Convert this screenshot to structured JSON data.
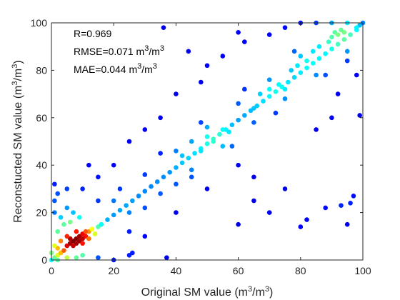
{
  "chart_data": {
    "type": "scatter",
    "title": "",
    "xlabel": {
      "base": "Original SM value (m",
      "sup1": "3",
      "mid": "/m",
      "sup2": "3",
      "end": ")"
    },
    "ylabel": {
      "base": "Reconstucted SM value (m",
      "sup1": "3",
      "mid": "/m",
      "sup2": "3",
      "end": ")"
    },
    "xlim": [
      0,
      100
    ],
    "ylim": [
      0,
      100
    ],
    "xticks": [
      0,
      20,
      40,
      60,
      80,
      100
    ],
    "yticks": [
      0,
      20,
      40,
      60,
      80,
      100
    ],
    "grid": false,
    "colormap": "jet (point density)",
    "annotations": [
      {
        "text": "R=0.969",
        "sup": "",
        "tail": ""
      },
      {
        "text": "RMSE=0.071 m",
        "sup": "3",
        "mid": "/m",
        "sup2": "3"
      },
      {
        "text": "MAE=0.044 m",
        "sup": "3",
        "mid": "/m",
        "sup2": "3"
      }
    ],
    "points": [
      [
        1,
        1
      ],
      [
        2,
        2
      ],
      [
        3,
        3
      ],
      [
        2,
        5
      ],
      [
        4,
        4
      ],
      [
        5,
        6
      ],
      [
        6,
        7
      ],
      [
        7,
        8
      ],
      [
        8,
        9
      ],
      [
        9,
        10
      ],
      [
        10,
        11
      ],
      [
        11,
        10
      ],
      [
        12,
        12
      ],
      [
        10,
        9
      ],
      [
        9,
        8
      ],
      [
        8,
        7
      ],
      [
        7,
        6
      ],
      [
        13,
        13
      ],
      [
        12,
        9
      ],
      [
        11,
        12
      ],
      [
        6,
        9
      ],
      [
        14,
        11
      ],
      [
        8,
        12
      ],
      [
        10,
        7
      ],
      [
        15,
        14
      ],
      [
        16,
        15
      ],
      [
        5,
        10
      ],
      [
        3,
        8
      ],
      [
        1,
        6
      ],
      [
        2,
        12
      ],
      [
        4,
        15
      ],
      [
        1,
        20
      ],
      [
        1,
        25
      ],
      [
        1,
        32
      ],
      [
        2,
        28
      ],
      [
        3,
        18
      ],
      [
        5,
        22
      ],
      [
        7,
        20
      ],
      [
        9,
        18
      ],
      [
        6,
        16
      ],
      [
        18,
        17
      ],
      [
        20,
        19
      ],
      [
        22,
        21
      ],
      [
        24,
        23
      ],
      [
        26,
        25
      ],
      [
        28,
        27
      ],
      [
        30,
        29
      ],
      [
        32,
        31
      ],
      [
        34,
        33
      ],
      [
        36,
        35
      ],
      [
        38,
        37
      ],
      [
        40,
        39
      ],
      [
        42,
        41
      ],
      [
        44,
        43
      ],
      [
        46,
        45
      ],
      [
        48,
        47
      ],
      [
        50,
        49
      ],
      [
        52,
        51
      ],
      [
        54,
        53
      ],
      [
        56,
        55
      ],
      [
        58,
        57
      ],
      [
        60,
        59
      ],
      [
        62,
        61
      ],
      [
        64,
        63
      ],
      [
        66,
        65
      ],
      [
        68,
        67
      ],
      [
        70,
        69
      ],
      [
        72,
        71
      ],
      [
        74,
        73
      ],
      [
        76,
        75
      ],
      [
        78,
        77
      ],
      [
        80,
        79
      ],
      [
        82,
        81
      ],
      [
        84,
        83
      ],
      [
        86,
        85
      ],
      [
        88,
        87
      ],
      [
        90,
        89
      ],
      [
        92,
        91
      ],
      [
        94,
        93
      ],
      [
        96,
        95
      ],
      [
        98,
        97
      ],
      [
        20,
        25
      ],
      [
        25,
        20
      ],
      [
        30,
        36
      ],
      [
        35,
        28
      ],
      [
        40,
        46
      ],
      [
        45,
        38
      ],
      [
        50,
        56
      ],
      [
        55,
        48
      ],
      [
        60,
        66
      ],
      [
        65,
        58
      ],
      [
        70,
        76
      ],
      [
        75,
        68
      ],
      [
        80,
        86
      ],
      [
        85,
        78
      ],
      [
        90,
        94
      ],
      [
        95,
        88
      ],
      [
        22,
        30
      ],
      [
        30,
        22
      ],
      [
        40,
        32
      ],
      [
        48,
        58
      ],
      [
        58,
        48
      ],
      [
        62,
        72
      ],
      [
        72,
        62
      ],
      [
        78,
        88
      ],
      [
        88,
        78
      ],
      [
        15,
        25
      ],
      [
        25,
        12
      ],
      [
        35,
        45
      ],
      [
        45,
        35
      ],
      [
        10,
        30
      ],
      [
        15,
        35
      ],
      [
        20,
        40
      ],
      [
        5,
        30
      ],
      [
        12,
        40
      ],
      [
        30,
        10
      ],
      [
        40,
        20
      ],
      [
        50,
        30
      ],
      [
        60,
        40
      ],
      [
        26,
        3
      ],
      [
        36,
        98
      ],
      [
        44,
        88
      ],
      [
        50,
        82
      ],
      [
        55,
        86
      ],
      [
        48,
        75
      ],
      [
        40,
        70
      ],
      [
        35,
        60
      ],
      [
        30,
        55
      ],
      [
        25,
        50
      ],
      [
        60,
        96
      ],
      [
        62,
        92
      ],
      [
        65,
        25
      ],
      [
        70,
        20
      ],
      [
        75,
        30
      ],
      [
        80,
        14
      ],
      [
        82,
        17
      ],
      [
        88,
        22
      ],
      [
        93,
        23
      ],
      [
        95,
        15
      ],
      [
        96,
        24
      ],
      [
        99,
        61
      ],
      [
        97,
        27
      ],
      [
        60,
        15
      ],
      [
        65,
        35
      ],
      [
        85,
        55
      ],
      [
        90,
        60
      ],
      [
        92,
        70
      ],
      [
        98,
        78
      ],
      [
        95,
        84
      ],
      [
        99,
        99
      ],
      [
        95,
        100
      ],
      [
        90,
        100
      ],
      [
        85,
        100
      ],
      [
        80,
        100
      ],
      [
        75,
        98
      ],
      [
        70,
        95
      ],
      [
        100,
        100
      ],
      [
        98,
        98
      ],
      [
        93,
        97
      ],
      [
        91,
        96
      ],
      [
        5,
        1
      ],
      [
        10,
        2
      ],
      [
        15,
        1
      ],
      [
        20,
        0
      ],
      [
        25,
        2
      ],
      [
        2,
        0
      ],
      [
        8,
        1
      ],
      [
        37,
        1
      ],
      [
        0,
        0
      ],
      [
        0,
        3
      ],
      [
        45,
        50
      ],
      [
        50,
        52
      ],
      [
        52,
        50
      ],
      [
        55,
        55
      ],
      [
        57,
        54
      ],
      [
        48,
        46
      ],
      [
        42,
        44
      ],
      [
        65,
        64
      ],
      [
        67,
        70
      ],
      [
        70,
        72
      ],
      [
        73,
        74
      ],
      [
        75,
        72
      ],
      [
        77,
        80
      ],
      [
        79,
        82
      ],
      [
        82,
        84
      ],
      [
        84,
        88
      ],
      [
        86,
        90
      ],
      [
        89,
        92
      ],
      [
        92,
        95
      ],
      [
        94,
        96
      ]
    ]
  }
}
